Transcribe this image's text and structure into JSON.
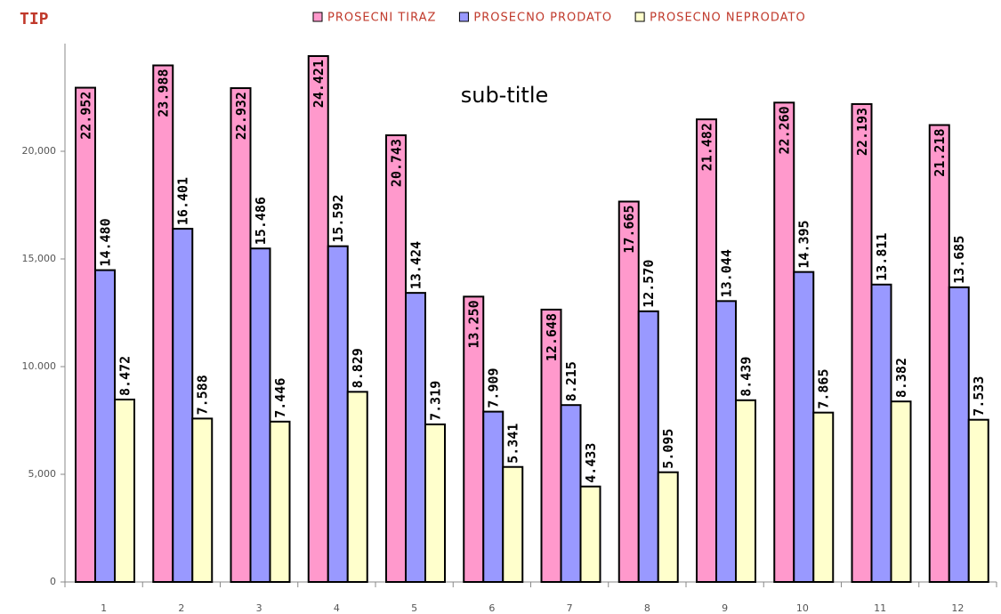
{
  "chart_data": {
    "type": "bar",
    "title": "TIP",
    "subtitle": "sub-title",
    "categories": [
      "1",
      "2",
      "3",
      "4",
      "5",
      "6",
      "7",
      "8",
      "9",
      "10",
      "11",
      "12"
    ],
    "series": [
      {
        "name": "PROSECNI TIRAZ",
        "color": "#ff99cc",
        "values": [
          22952,
          23988,
          22932,
          24421,
          20743,
          13250,
          12648,
          17665,
          21482,
          22260,
          22193,
          21218
        ],
        "value_labels": [
          "22.952",
          "23.988",
          "22.932",
          "24.421",
          "20.743",
          "13.250",
          "12.648",
          "17.665",
          "21.482",
          "22.260",
          "22.193",
          "21.218"
        ]
      },
      {
        "name": "PROSECNO PRODATO",
        "color": "#9999ff",
        "values": [
          14480,
          16401,
          15486,
          15592,
          13424,
          7909,
          8215,
          12570,
          13044,
          14395,
          13811,
          13685
        ],
        "value_labels": [
          "14.480",
          "16.401",
          "15.486",
          "15.592",
          "13.424",
          "7.909",
          "8.215",
          "12.570",
          "13.044",
          "14.395",
          "13.811",
          "13.685"
        ]
      },
      {
        "name": "PROSECNO NEPRODATO",
        "color": "#ffffcc",
        "values": [
          8472,
          7588,
          7446,
          8829,
          7319,
          5341,
          4433,
          5095,
          8439,
          7865,
          8382,
          7533
        ],
        "value_labels": [
          "8.472",
          "7.588",
          "7.446",
          "8.829",
          "7.319",
          "5.341",
          "4.433",
          "5.095",
          "8.439",
          "7.865",
          "8.382",
          "7.533"
        ]
      }
    ],
    "ylim": [
      0,
      25000
    ],
    "yticks": [
      0,
      {
        "value": 5000,
        "label": "5,000"
      },
      {
        "value": 10000,
        "label": "10.000"
      },
      {
        "value": 15000,
        "label": "15,000"
      },
      {
        "value": 20000,
        "label": "20,000"
      }
    ]
  }
}
